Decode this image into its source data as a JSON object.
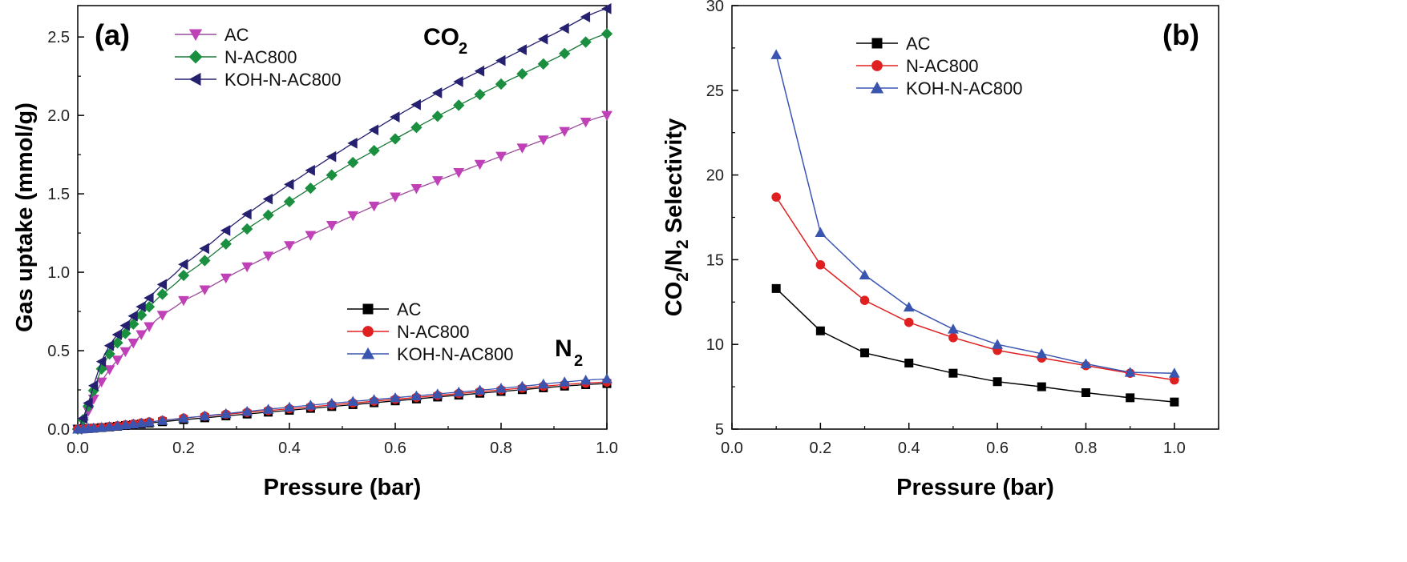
{
  "chart_data": [
    {
      "type": "line",
      "panel_label": "(a)",
      "xlabel": "Pressure (bar)",
      "ylabel": "Gas uptake (mmol/g)",
      "xlim": [
        0.0,
        1.0
      ],
      "ylim": [
        0.0,
        2.7
      ],
      "xticks": [
        "0.0",
        "0.2",
        "0.4",
        "0.6",
        "0.8",
        "1.0"
      ],
      "yticks": [
        "0.0",
        "0.5",
        "1.0",
        "1.5",
        "2.0",
        "2.5"
      ],
      "annotations": [
        {
          "main": "CO",
          "sub": "2"
        },
        {
          "main": "N",
          "sub": "2"
        }
      ],
      "legends": [
        {
          "group": "CO2",
          "entries": [
            "AC",
            "N-AC800",
            "KOH-N-AC800"
          ]
        },
        {
          "group": "N2",
          "entries": [
            "AC",
            "N-AC800",
            "KOH-N-AC800"
          ]
        }
      ],
      "series": [
        {
          "name": "AC",
          "gas": "CO2",
          "color": "#c040b8",
          "line_color": "#9a4a9a",
          "marker": "triangle-down",
          "x": [
            0.0,
            0.05,
            0.1,
            0.15,
            0.2,
            0.3,
            0.4,
            0.5,
            0.6,
            0.7,
            0.8,
            0.9,
            1.0
          ],
          "y": [
            0.0,
            0.33,
            0.53,
            0.7,
            0.82,
            1.0,
            1.17,
            1.33,
            1.48,
            1.61,
            1.74,
            1.87,
            2.0
          ]
        },
        {
          "name": "N-AC800",
          "gas": "CO2",
          "color": "#1a8f3f",
          "line_color": "#1a7a38",
          "marker": "diamond",
          "x": [
            0.0,
            0.05,
            0.1,
            0.15,
            0.2,
            0.3,
            0.4,
            0.5,
            0.6,
            0.7,
            0.8,
            0.9,
            1.0
          ],
          "y": [
            0.0,
            0.42,
            0.65,
            0.83,
            0.98,
            1.23,
            1.45,
            1.66,
            1.85,
            2.03,
            2.2,
            2.36,
            2.52
          ]
        },
        {
          "name": "KOH-N-AC800",
          "gas": "CO2",
          "color": "#252070",
          "line_color": "#252070",
          "marker": "triangle-left",
          "x": [
            0.0,
            0.05,
            0.1,
            0.15,
            0.2,
            0.3,
            0.4,
            0.5,
            0.6,
            0.7,
            0.8,
            0.9,
            1.0
          ],
          "y": [
            0.0,
            0.47,
            0.7,
            0.89,
            1.05,
            1.32,
            1.56,
            1.78,
            1.99,
            2.18,
            2.35,
            2.52,
            2.68
          ]
        },
        {
          "name": "AC",
          "gas": "N2",
          "color": "#000000",
          "line_color": "#000000",
          "marker": "square",
          "x": [
            0.0,
            0.2,
            0.4,
            0.6,
            0.8,
            1.0
          ],
          "y": [
            0.0,
            0.06,
            0.12,
            0.18,
            0.24,
            0.29
          ]
        },
        {
          "name": "N-AC800",
          "gas": "N2",
          "color": "#e02020",
          "line_color": "#e02020",
          "marker": "circle",
          "x": [
            0.0,
            0.2,
            0.4,
            0.6,
            0.8,
            1.0
          ],
          "y": [
            0.0,
            0.07,
            0.13,
            0.19,
            0.25,
            0.3
          ]
        },
        {
          "name": "KOH-N-AC800",
          "gas": "N2",
          "color": "#3a55b0",
          "line_color": "#3a55b0",
          "marker": "triangle-up",
          "x": [
            0.0,
            0.2,
            0.4,
            0.6,
            0.8,
            1.0
          ],
          "y": [
            0.0,
            0.07,
            0.14,
            0.2,
            0.26,
            0.32
          ]
        }
      ]
    },
    {
      "type": "line",
      "panel_label": "(b)",
      "xlabel": "Pressure (bar)",
      "ylabel": {
        "parts": [
          "CO",
          "2",
          "/N",
          "2",
          " Selectivity"
        ]
      },
      "xlim": [
        0.0,
        1.1
      ],
      "ylim": [
        5,
        30
      ],
      "xticks": [
        "0.0",
        "0.2",
        "0.4",
        "0.6",
        "0.8",
        "1.0"
      ],
      "yticks": [
        "5",
        "10",
        "15",
        "20",
        "25",
        "30"
      ],
      "legends": [
        {
          "group": "selectivity",
          "entries": [
            "AC",
            "N-AC800",
            "KOH-N-AC800"
          ]
        }
      ],
      "series": [
        {
          "name": "AC",
          "color": "#000000",
          "line_color": "#000000",
          "marker": "square",
          "x": [
            0.1,
            0.2,
            0.3,
            0.4,
            0.5,
            0.6,
            0.7,
            0.8,
            0.9,
            1.0
          ],
          "y": [
            13.3,
            10.8,
            9.5,
            8.9,
            8.3,
            7.8,
            7.5,
            7.15,
            6.85,
            6.6
          ]
        },
        {
          "name": "N-AC800",
          "color": "#e02020",
          "line_color": "#e02020",
          "marker": "circle",
          "x": [
            0.1,
            0.2,
            0.3,
            0.4,
            0.5,
            0.6,
            0.7,
            0.8,
            0.9,
            1.0
          ],
          "y": [
            18.7,
            14.7,
            12.6,
            11.3,
            10.4,
            9.65,
            9.2,
            8.75,
            8.3,
            7.9
          ]
        },
        {
          "name": "KOH-N-AC800",
          "color": "#3a55b0",
          "line_color": "#3a55b0",
          "marker": "triangle-up",
          "x": [
            0.1,
            0.2,
            0.3,
            0.4,
            0.5,
            0.6,
            0.7,
            0.8,
            0.9,
            1.0
          ],
          "y": [
            27.1,
            16.6,
            14.1,
            12.2,
            10.9,
            10.0,
            9.45,
            8.85,
            8.35,
            8.3
          ]
        }
      ]
    }
  ]
}
